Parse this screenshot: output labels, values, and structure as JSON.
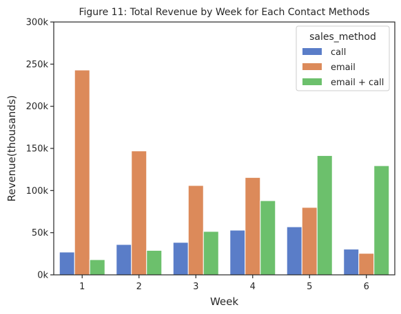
{
  "chart_data": {
    "type": "bar",
    "title": "Figure 11: Total Revenue by Week for Each Contact Methods",
    "xlabel": "Week",
    "ylabel": "Revenue(thousands)",
    "categories": [
      "1",
      "2",
      "3",
      "4",
      "5",
      "6"
    ],
    "ylim": [
      0,
      300000
    ],
    "yticks": [
      0,
      50000,
      100000,
      150000,
      200000,
      250000,
      300000
    ],
    "ytick_labels": [
      "0k",
      "50k",
      "100k",
      "150k",
      "200k",
      "250k",
      "300k"
    ],
    "grid": false,
    "legend": {
      "title": "sales_method",
      "position": "top-right"
    },
    "series": [
      {
        "name": "call",
        "color": "#5a7dc8",
        "values": [
          27000,
          36000,
          38500,
          53000,
          57000,
          30500
        ]
      },
      {
        "name": "email",
        "color": "#dc8a5a",
        "values": [
          243000,
          147000,
          106000,
          115500,
          80000,
          25500
        ]
      },
      {
        "name": "email + call",
        "color": "#6cc06c",
        "values": [
          18000,
          29000,
          51500,
          88000,
          141500,
          129500
        ]
      }
    ]
  }
}
